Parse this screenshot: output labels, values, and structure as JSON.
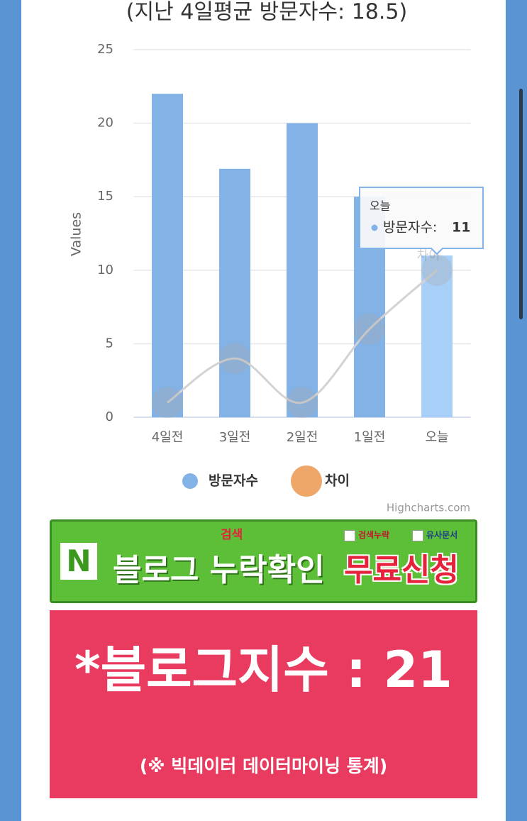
{
  "header": {
    "title": "(지난 4일평균 방문자수: 18.5)"
  },
  "chart_data": {
    "type": "bar",
    "categories": [
      "4일전",
      "3일전",
      "2일전",
      "1일전",
      "오늘"
    ],
    "series": [
      {
        "name": "방문자수",
        "type": "bar",
        "color": "#83b2e6",
        "values": [
          22,
          16.9,
          20,
          15,
          11
        ]
      },
      {
        "name": "차이",
        "type": "line",
        "color": "#eea669",
        "line_color": "#d3d3d3",
        "values": [
          1,
          4,
          1,
          6,
          10
        ]
      }
    ],
    "ylabel": "Values",
    "ylim": [
      0,
      25
    ],
    "yticks": [
      0,
      5,
      10,
      15,
      20,
      25
    ],
    "grid": true,
    "hover_label": "차이",
    "tooltip": {
      "index": 4,
      "highlight_color": "#a8cff8",
      "text": "방문자수:"
    },
    "credits": "Highcharts.com"
  },
  "banner": {
    "logo": "N",
    "search": "검색",
    "check1": "검색누락",
    "check2": "유사문서",
    "main": "블로그 누락확인",
    "action": "무료신청"
  },
  "index_box": {
    "title": "*블로그지수 : 21",
    "note": "(※ 빅데이터 데이터마이닝 통계)"
  }
}
